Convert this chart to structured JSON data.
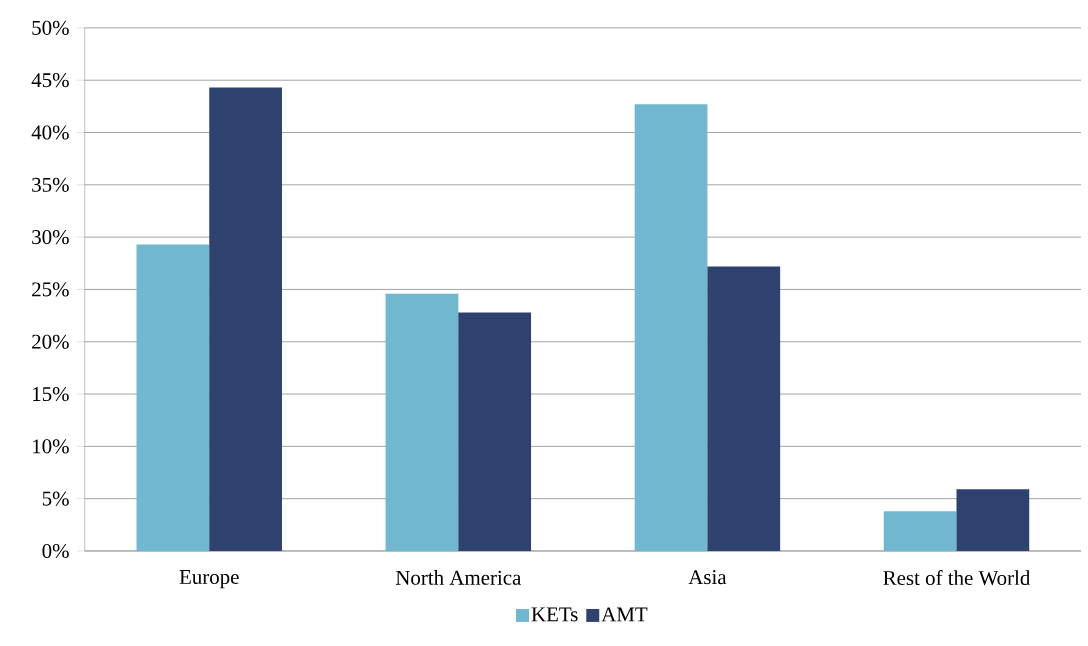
{
  "chart_data": {
    "type": "bar",
    "categories": [
      "Europe",
      "North America",
      "Asia",
      "Rest of the World"
    ],
    "series": [
      {
        "name": "KETs",
        "color": "#70b7cf",
        "values": [
          29.3,
          24.6,
          42.7,
          3.8
        ]
      },
      {
        "name": "AMT",
        "color": "#2f416e",
        "values": [
          44.3,
          22.8,
          27.2,
          5.9
        ]
      }
    ],
    "ylim": [
      0,
      50
    ],
    "yticks": [
      {
        "value": 0,
        "label": "0%"
      },
      {
        "value": 5,
        "label": "5%"
      },
      {
        "value": 10,
        "label": "10%"
      },
      {
        "value": 15,
        "label": "15%"
      },
      {
        "value": 20,
        "label": "20%"
      },
      {
        "value": 25,
        "label": "25%"
      },
      {
        "value": 30,
        "label": "30%"
      },
      {
        "value": 35,
        "label": "35%"
      },
      {
        "value": 40,
        "label": "40%"
      },
      {
        "value": 45,
        "label": "45%"
      },
      {
        "value": 50,
        "label": "50%"
      }
    ],
    "grid": "y",
    "legend": "bottom"
  }
}
